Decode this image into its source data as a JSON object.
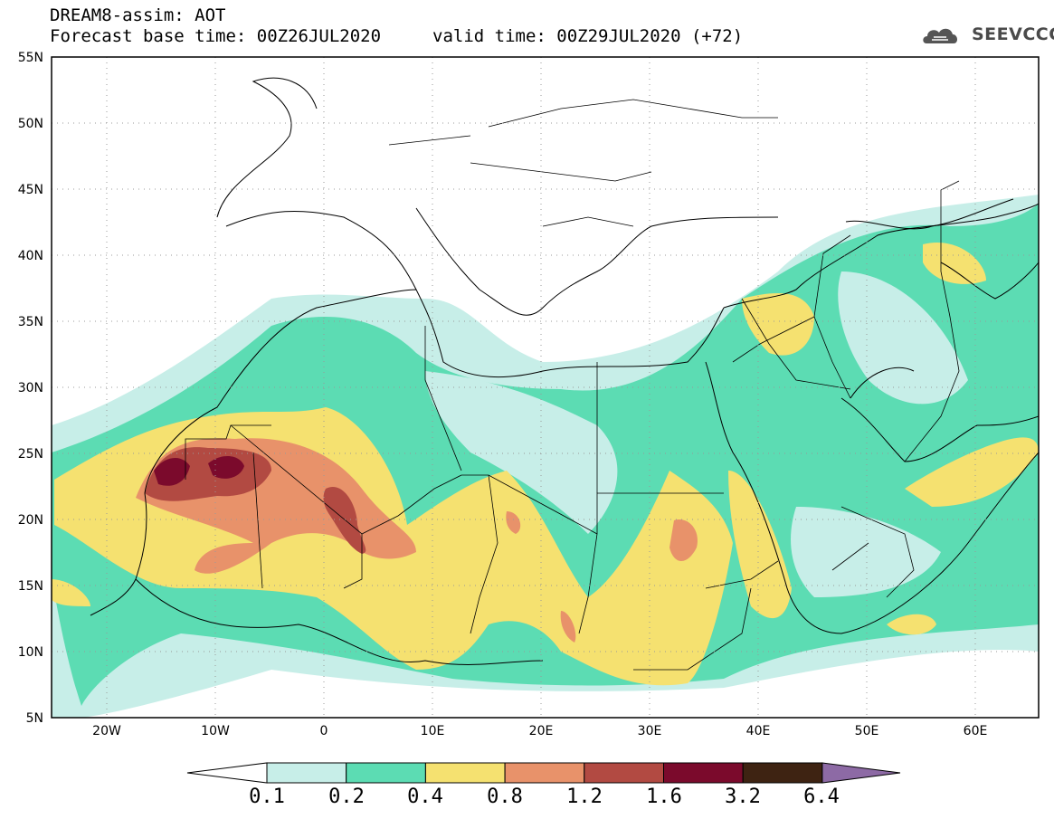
{
  "header": {
    "title": "DREAM8-assim: AOT",
    "base_time": "Forecast base time: 00Z26JUL2020",
    "valid_time": "valid time: 00Z29JUL2020 (+72)"
  },
  "logo": {
    "text": "SEEVCCC",
    "icon": "cloud-icon"
  },
  "map": {
    "variable": "AOT",
    "model": "DREAM8-assim",
    "lon_range": [
      -25,
      65
    ],
    "lat_range": [
      5,
      55
    ],
    "lat_ticks": [
      "5N",
      "10N",
      "15N",
      "20N",
      "25N",
      "30N",
      "35N",
      "40N",
      "45N",
      "50N",
      "55N"
    ],
    "lon_ticks": [
      "20W",
      "10W",
      "0",
      "10E",
      "20E",
      "30E",
      "40E",
      "50E",
      "60E"
    ],
    "grid": "dotted"
  },
  "colorbar": {
    "labels": [
      "0.1",
      "0.2",
      "0.4",
      "0.8",
      "1.2",
      "1.6",
      "3.2",
      "6.4"
    ],
    "colors": [
      "#ffffff",
      "#c7eee8",
      "#5cdcb3",
      "#f5e170",
      "#e8926a",
      "#b24a42",
      "#7b0a2c",
      "#3e2312",
      "#8d6aa5"
    ]
  }
}
